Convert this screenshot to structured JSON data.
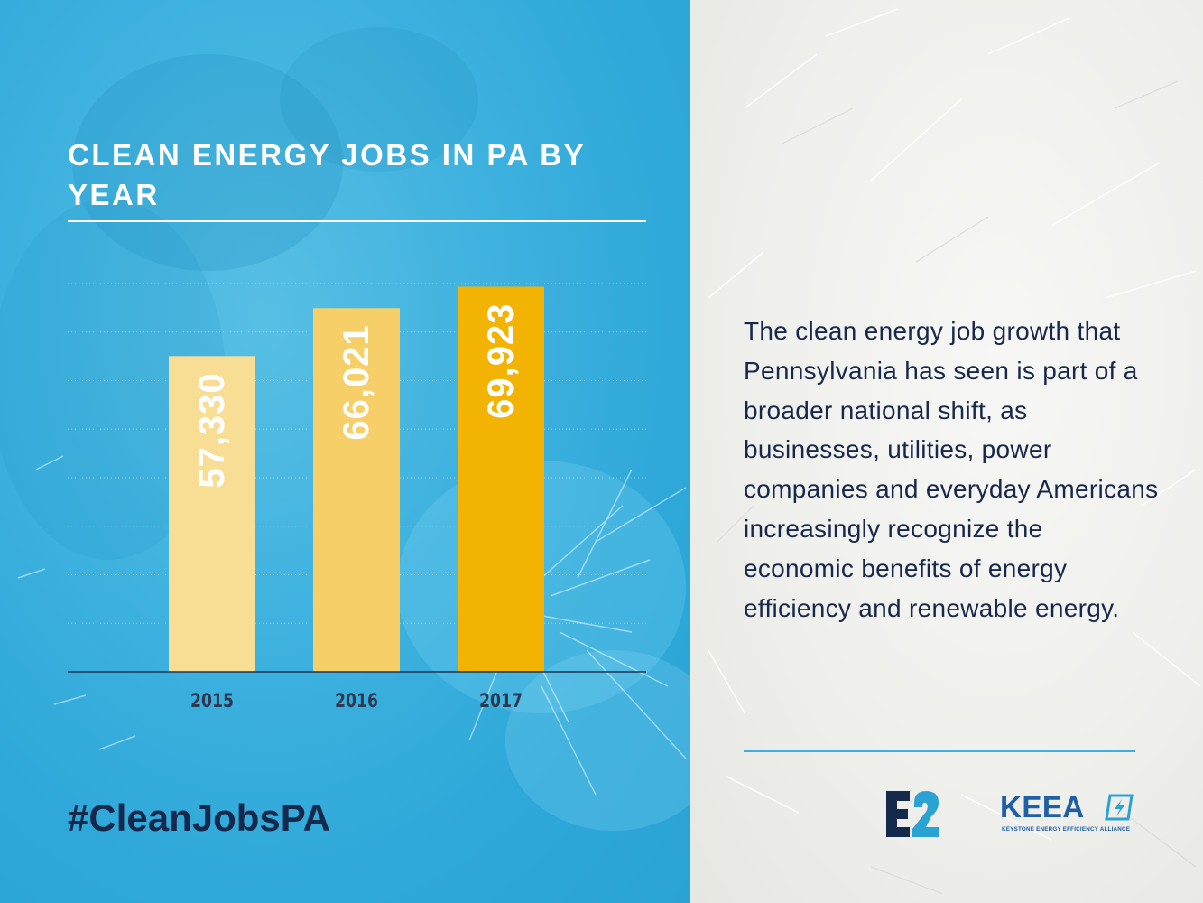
{
  "chart_data": {
    "type": "bar",
    "title": "CLEAN ENERGY JOBS IN PA BY YEAR",
    "categories": [
      "2015",
      "2016",
      "2017"
    ],
    "values": [
      57330,
      66021,
      69923
    ],
    "value_labels": [
      "57,330",
      "66,021",
      "69,923"
    ],
    "ylim": [
      0,
      70500
    ],
    "grid": true,
    "colors": [
      "#f8de95",
      "#f6cf68",
      "#f2b302"
    ]
  },
  "hashtag": "#CleanJobsPA",
  "body_text": "The clean energy job growth that Pennsylvania has seen is part of a broader national shift, as businesses, utilities, power companies and everyday Americans increasingly recognize the economic benefits of energy efficiency and renewable energy.",
  "logos": {
    "e2": "E2",
    "keea_word": "KEEA",
    "keea_tagline": "KEYSTONE ENERGY EFFICIENCY ALLIANCE"
  },
  "colors": {
    "accent_blue": "#2aa3d4",
    "navy": "#15294c",
    "logo_blue": "#1e5fa8"
  }
}
